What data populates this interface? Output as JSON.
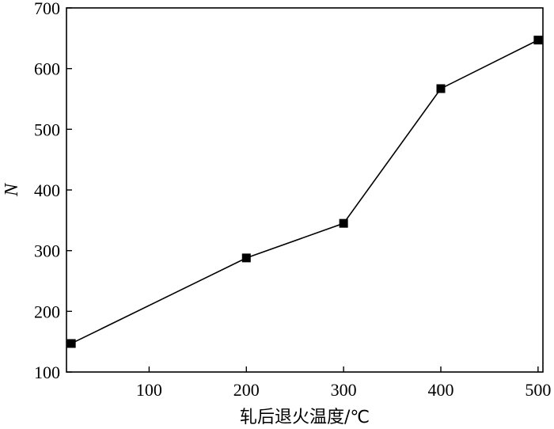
{
  "chart_data": {
    "type": "line",
    "title": "",
    "xlabel": "轧后退火温度/℃",
    "ylabel": "N",
    "xlim": [
      15,
      505
    ],
    "ylim": [
      100,
      700
    ],
    "xticks": [
      100,
      200,
      300,
      400,
      500
    ],
    "yticks": [
      100,
      200,
      300,
      400,
      500,
      600,
      700
    ],
    "grid": false,
    "legend": "none",
    "series": [
      {
        "marker": "square",
        "color": "#000000",
        "x": [
          20,
          200,
          300,
          400,
          500
        ],
        "y": [
          147,
          288,
          345,
          567,
          647
        ]
      }
    ]
  }
}
